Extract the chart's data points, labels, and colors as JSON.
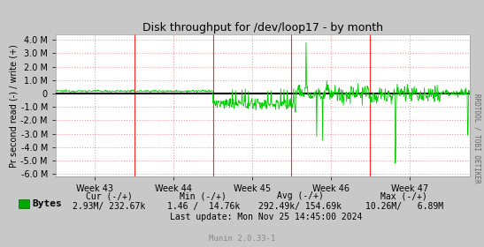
{
  "title": "Disk throughput for /dev/loop17 - by month",
  "ylabel": "Pr second read (-) / write (+)",
  "xlabel_ticks": [
    "Week 43",
    "Week 44",
    "Week 45",
    "Week 46",
    "Week 47"
  ],
  "ylim": [
    -6200000,
    4400000
  ],
  "yticks": [
    -6000000,
    -5000000,
    -4000000,
    -3000000,
    -2000000,
    -1000000,
    0,
    1000000,
    2000000,
    3000000,
    4000000
  ],
  "ytick_labels": [
    "-6.0 M",
    "-5.0 M",
    "-4.0 M",
    "-3.0 M",
    "-2.0 M",
    "-1.0 M",
    "0",
    "1.0 M",
    "2.0 M",
    "3.0 M",
    "4.0 M"
  ],
  "bg_color": "#c8c8c8",
  "plot_bg_color": "#ffffff",
  "grid_color": "#e8a0a0",
  "line_color": "#00cc00",
  "zero_line_color": "#000000",
  "vline_color": "#ff0000",
  "right_label": "RRDTOOL / TOBI OETIKER",
  "legend_label": "Bytes",
  "legend_color": "#00aa00",
  "footer_cur": "Cur (-/+)",
  "footer_min": "Min (-/+)",
  "footer_avg": "Avg (-/+)",
  "footer_max": "Max (-/+)",
  "footer_cur_val": "2.93M/ 232.67k",
  "footer_min_val": "1.46 /  14.76k",
  "footer_avg_val": "292.49k/ 154.69k",
  "footer_max_val": "10.26M/   6.89M",
  "footer_last": "Last update: Mon Nov 25 14:45:00 2024",
  "footer_munin": "Munin 2.0.33-1",
  "n_points": 900
}
